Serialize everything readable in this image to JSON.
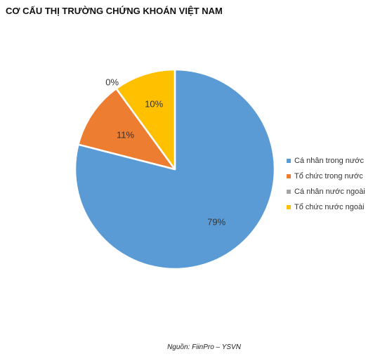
{
  "chart_data": {
    "type": "pie",
    "title": "CƠ CẤU THỊ TRƯỜNG CHỨNG KHOÁN VIỆT NAM",
    "categories": [
      "Cá nhân trong nước",
      "Tổ chức trong nước",
      "Cá nhân nước ngoài",
      "Tổ chức nước ngoài"
    ],
    "values": [
      79,
      11,
      0,
      10
    ],
    "labels": [
      "79%",
      "11%",
      "0%",
      "10%"
    ],
    "colors": [
      "#5B9BD5",
      "#ED7D31",
      "#A5A5A5",
      "#FFC000"
    ],
    "legend_position": "right",
    "source": "Nguồn: FiinPro – YSVN"
  }
}
